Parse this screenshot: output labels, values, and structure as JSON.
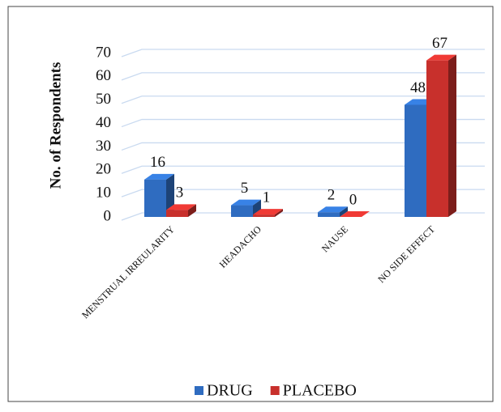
{
  "chart_data": {
    "type": "bar",
    "y_label": "No. of Respondents",
    "categories": [
      "MENSTRUAL IRREULARITY",
      "HEADACHO",
      "NAUSE",
      "NO SIDE EFFECT"
    ],
    "series": [
      {
        "name": "DRUG",
        "color": "#2f6cc0",
        "values": [
          16,
          5,
          2,
          48
        ]
      },
      {
        "name": "PLACEBO",
        "color": "#c8302c",
        "values": [
          3,
          1,
          0,
          67
        ]
      }
    ],
    "ylim": [
      0,
      70
    ],
    "yticks": [
      0,
      10,
      20,
      30,
      40,
      50,
      60,
      70
    ],
    "grid": true,
    "legend": "bottom"
  }
}
